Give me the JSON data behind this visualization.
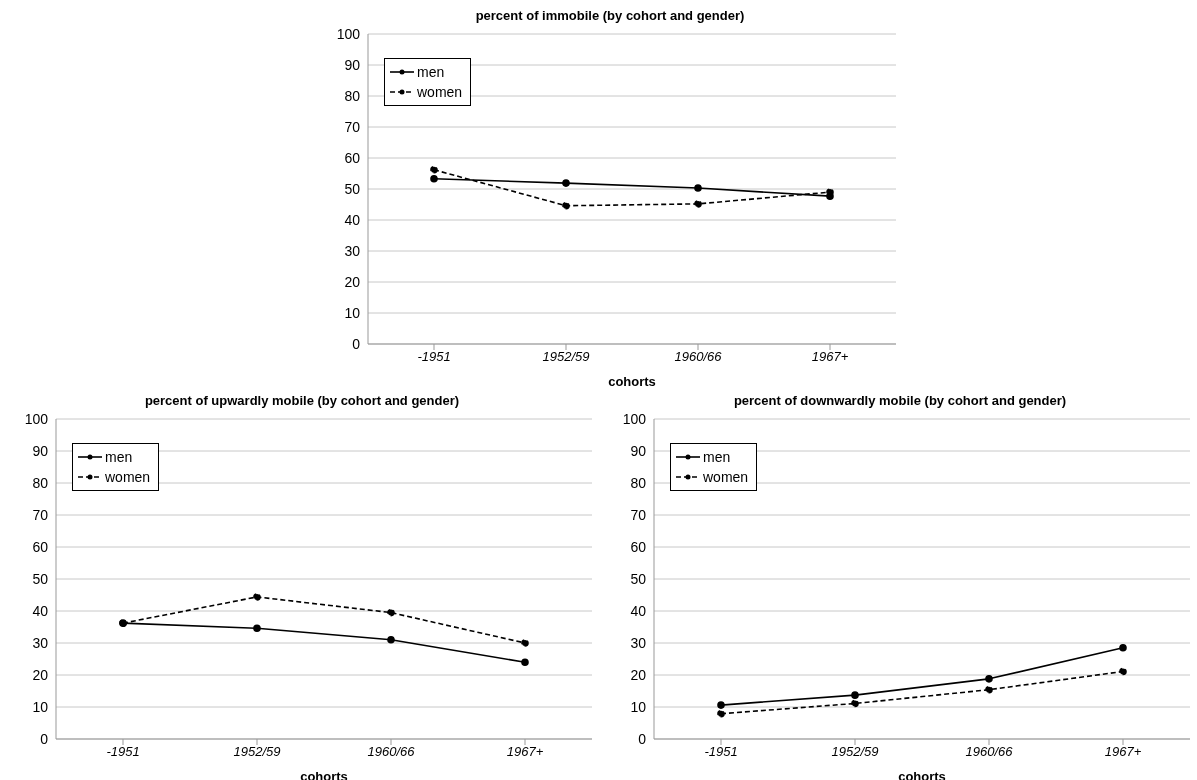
{
  "chart_data": [
    {
      "type": "line",
      "title": "percent of immobile (by cohort and gender)",
      "xlabel": "cohorts",
      "categories": [
        "-1951",
        "1952/59",
        "1960/66",
        "1967+"
      ],
      "ylim": [
        0,
        100
      ],
      "yticks": [
        0,
        10,
        20,
        30,
        40,
        50,
        60,
        70,
        80,
        90,
        100
      ],
      "grid": "y",
      "legend": "top left",
      "marker": "circle",
      "series": [
        {
          "name": "men",
          "color": "#000000",
          "line_style": "solid",
          "values": [
            53.3,
            51.9,
            50.3,
            47.7
          ]
        },
        {
          "name": "women",
          "color": "#000000",
          "line_style": "dashed",
          "values": [
            56.2,
            44.6,
            45.2,
            49.0
          ]
        }
      ]
    },
    {
      "type": "line",
      "title": "percent of upwardly mobile (by cohort and gender)",
      "xlabel": "cohorts",
      "categories": [
        "-1951",
        "1952/59",
        "1960/66",
        "1967+"
      ],
      "ylim": [
        0,
        100
      ],
      "yticks": [
        0,
        10,
        20,
        30,
        40,
        50,
        60,
        70,
        80,
        90,
        100
      ],
      "grid": "y",
      "legend": "top left",
      "marker": "circle",
      "series": [
        {
          "name": "men",
          "color": "#000000",
          "line_style": "solid",
          "values": [
            36.2,
            34.6,
            31.0,
            24.0
          ]
        },
        {
          "name": "women",
          "color": "#000000",
          "line_style": "dashed",
          "values": [
            36.2,
            44.4,
            39.5,
            30.0
          ]
        }
      ]
    },
    {
      "type": "line",
      "title": "percent of downwardly mobile (by cohort and gender)",
      "xlabel": "cohorts",
      "categories": [
        "-1951",
        "1952/59",
        "1960/66",
        "1967+"
      ],
      "ylim": [
        0,
        100
      ],
      "yticks": [
        0,
        10,
        20,
        30,
        40,
        50,
        60,
        70,
        80,
        90,
        100
      ],
      "grid": "y",
      "legend": "top left",
      "marker": "circle",
      "series": [
        {
          "name": "men",
          "color": "#000000",
          "line_style": "solid",
          "values": [
            10.6,
            13.7,
            18.8,
            28.5
          ]
        },
        {
          "name": "women",
          "color": "#000000",
          "line_style": "dashed",
          "values": [
            7.9,
            11.1,
            15.4,
            21.1
          ]
        }
      ]
    }
  ]
}
